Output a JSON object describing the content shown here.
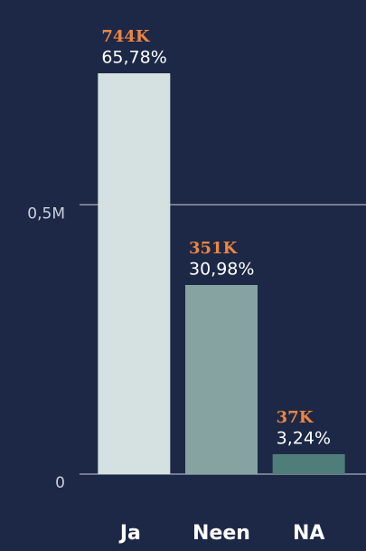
{
  "chart_data": {
    "type": "bar",
    "categories": [
      "Ja",
      "Neen",
      "NA"
    ],
    "values": [
      744000,
      351000,
      37000
    ],
    "value_labels": [
      "744K",
      "351K",
      "37K"
    ],
    "shares": [
      65.78,
      30.98,
      3.24
    ],
    "share_labels": [
      "65,78%",
      "30,98%",
      "3,24%"
    ],
    "colors": [
      "#d5e0e0",
      "#86a3a1",
      "#4f7d79"
    ],
    "ylim": [
      0,
      880000
    ],
    "yticks": [
      {
        "value": 0,
        "label": "0"
      },
      {
        "value": 500000,
        "label": "0,5M"
      }
    ],
    "grid": true
  }
}
